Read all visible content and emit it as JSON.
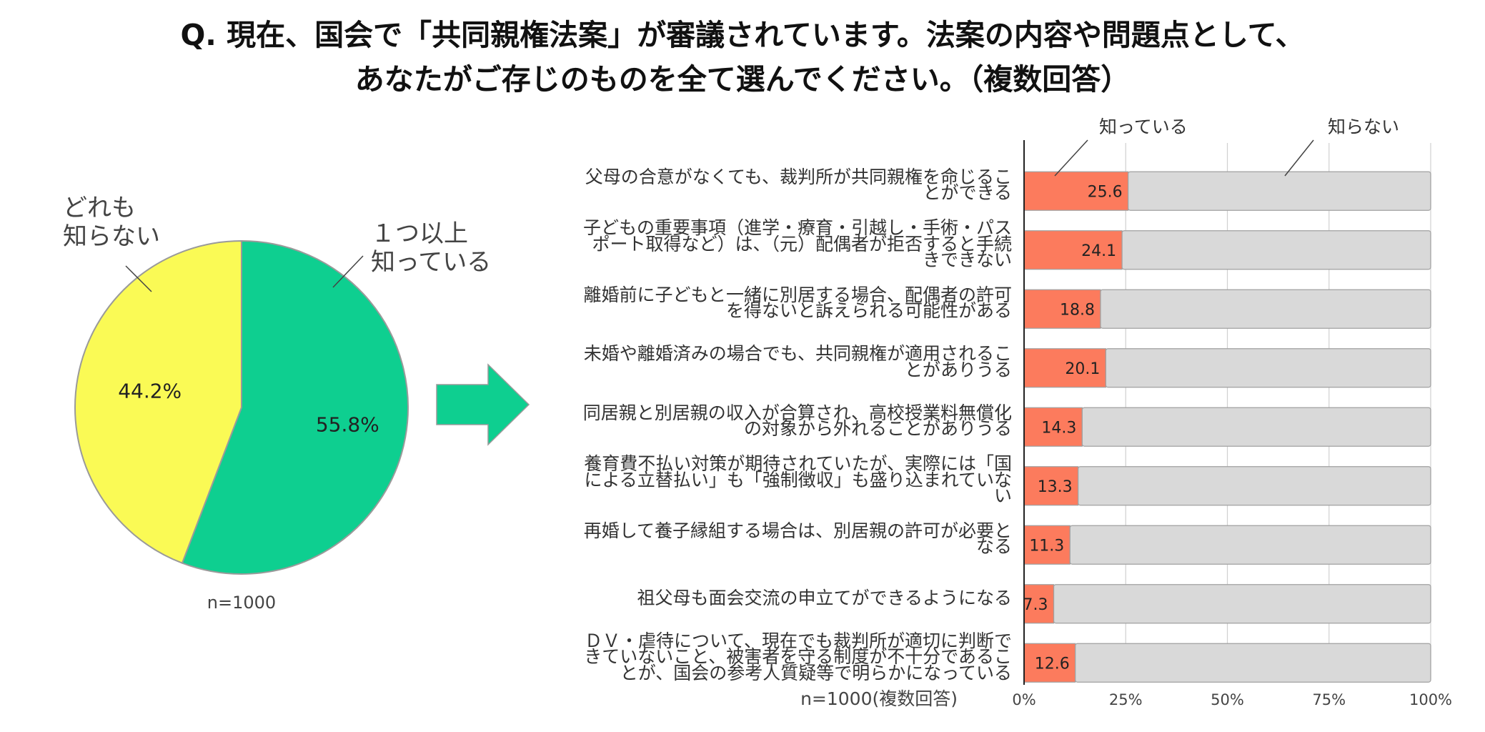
{
  "title": {
    "line1": "Q. 現在、国会で「共同親権法案」が審議されています。法案の内容や問題点として、",
    "line2": "あなたがご存じのものを全て選んでください。（複数回答）"
  },
  "chart_data": [
    {
      "type": "pie",
      "slices": [
        {
          "label": "１つ以上\n知っている",
          "value": 55.8,
          "display": "55.8%",
          "color": "#0ecf90"
        },
        {
          "label": "どれも\n知らない",
          "value": 44.2,
          "display": "44.2%",
          "color": "#fafa55"
        }
      ],
      "note": "n=1000"
    },
    {
      "type": "bar",
      "orientation": "horizontal",
      "stacked": true,
      "series": [
        {
          "name": "知っている",
          "color": "#fc7b5d",
          "values": [
            25.6,
            24.1,
            18.8,
            20.1,
            14.3,
            13.3,
            11.3,
            7.3,
            12.6
          ]
        },
        {
          "name": "知らない",
          "color": "#d9d9d9",
          "values": [
            74.4,
            75.9,
            81.2,
            79.9,
            85.7,
            86.7,
            88.7,
            92.7,
            87.4
          ]
        }
      ],
      "categories": [
        [
          "父母の合意がなくても、裁判所が共同親権を命じるこ",
          "とができる"
        ],
        [
          "子どもの重要事項（進学・療育・引越し・手術・パス",
          "ポート取得など）は、（元）配偶者が拒否すると手続",
          "きできない"
        ],
        [
          "離婚前に子どもと一緒に別居する場合、配偶者の許可",
          "を得ないと訴えられる可能性がある"
        ],
        [
          "未婚や離婚済みの場合でも、共同親権が適用されるこ",
          "とがありうる"
        ],
        [
          "同居親と別居親の収入が合算され、高校授業料無償化",
          "の対象から外れることがありうる"
        ],
        [
          "養育費不払い対策が期待されていたが、実際には「国",
          "による立替払い」も「強制徴収」も盛り込まれていな",
          "い"
        ],
        [
          "再婚して養子縁組する場合は、別居親の許可が必要と",
          "なる"
        ],
        [
          "祖父母も面会交流の申立てができるようになる"
        ],
        [
          "ＤＶ・虐待について、現在でも裁判所が適切に判断で",
          "きていないこと、被害者を守る制度が不十分であるこ",
          "とが、国会の参考人質疑等で明らかになっている"
        ]
      ],
      "x_ticks": [
        "0%",
        "25%",
        "50%",
        "75%",
        "100%"
      ],
      "xlim": [
        0,
        100
      ],
      "grid": true,
      "note": "n=1000(複数回答)"
    }
  ]
}
